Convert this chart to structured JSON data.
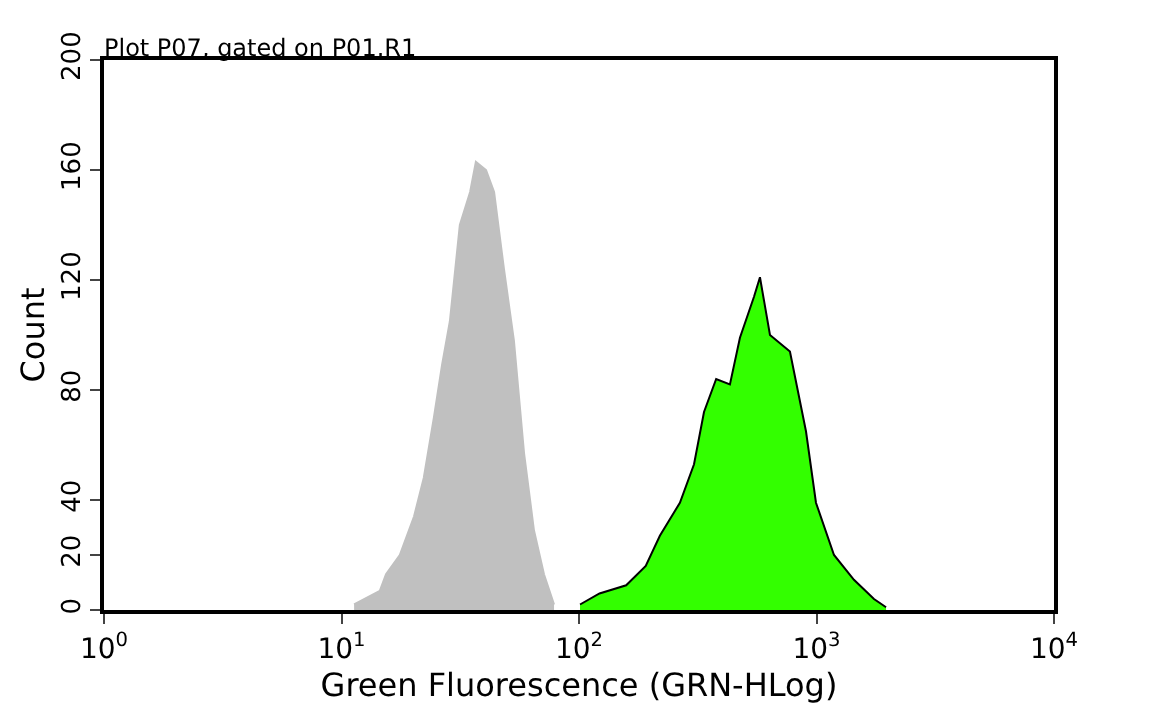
{
  "chart_data": {
    "type": "area",
    "title": "Plot P07, gated on P01.R1",
    "xlabel": "Green Fluorescence (GRN-HLog)",
    "ylabel": "Count",
    "log": "x",
    "xlim": [
      1,
      10000
    ],
    "ylim": [
      0,
      200
    ],
    "xticks": [
      {
        "value": 1,
        "label": "10$^{0}$"
      },
      {
        "value": 10,
        "label": "10$^{1}$"
      },
      {
        "value": 100,
        "label": "10$^{2}$"
      },
      {
        "value": 1000,
        "label": "10$^{3}$"
      },
      {
        "value": 10000,
        "label": "10$^{4}$"
      }
    ],
    "yticks": [
      0,
      20,
      40,
      80,
      120,
      160,
      200
    ],
    "series": [
      {
        "color": "#c0c0c0",
        "x": [
          11.3,
          14.5,
          15.4,
          17.6,
          20.2,
          22.2,
          24.5,
          26.5,
          28.6,
          31.5,
          34.8,
          36.8,
          40.6,
          43.9,
          48.3,
          53.2,
          58.7,
          64.6,
          71.2,
          78.5
        ],
        "values": [
          2,
          7,
          13,
          20,
          34,
          48,
          70,
          89,
          105,
          140,
          152,
          163,
          160,
          152,
          124,
          98,
          57,
          29,
          13,
          2
        ]
      },
      {
        "color": "#33ff00",
        "x": [
          101,
          122,
          158,
          191,
          219,
          266,
          305,
          336,
          378,
          432,
          476,
          546,
          578,
          637,
          773,
          903,
          995,
          1185,
          1438,
          1746,
          1963
        ],
        "values": [
          2,
          6,
          9,
          16,
          27,
          39,
          53,
          72,
          84,
          82,
          99,
          114,
          121,
          100,
          94,
          65,
          39,
          20,
          11,
          4,
          1
        ]
      }
    ]
  }
}
